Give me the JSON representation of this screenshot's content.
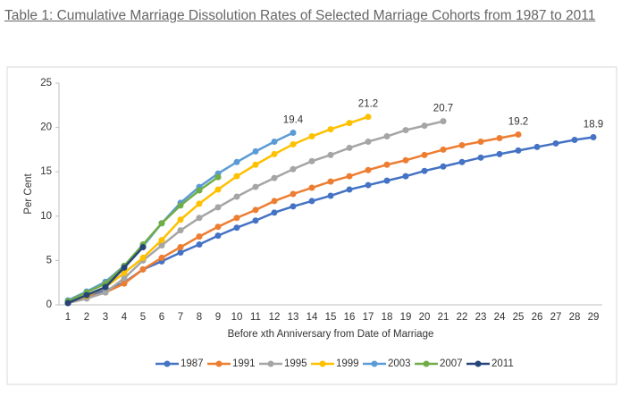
{
  "chart_data": {
    "type": "line",
    "title": "Table 1: Cumulative Marriage Dissolution Rates of Selected Marriage Cohorts from 1987 to 2011",
    "x_label": "Before xth Anniversary from Date of Marriage",
    "y_label": "Per Cent",
    "categories": [
      "1",
      "2",
      "3",
      "4",
      "5",
      "6",
      "7",
      "8",
      "9",
      "10",
      "11",
      "12",
      "13",
      "14",
      "15",
      "16",
      "17",
      "18",
      "19",
      "20",
      "21",
      "22",
      "23",
      "24",
      "25",
      "26",
      "27",
      "28",
      "29"
    ],
    "ylim": [
      0,
      25
    ],
    "yticks": [
      0,
      5,
      10,
      15,
      20,
      25
    ],
    "grid": false,
    "legend": "bottom",
    "series": [
      {
        "name": "1987",
        "color": "#4472c4",
        "end_label": true,
        "values": [
          0.2,
          1.0,
          1.6,
          2.5,
          4.0,
          4.9,
          5.9,
          6.8,
          7.8,
          8.7,
          9.5,
          10.4,
          11.1,
          11.7,
          12.3,
          13.0,
          13.5,
          14.0,
          14.5,
          15.1,
          15.6,
          16.1,
          16.6,
          17.0,
          17.4,
          17.8,
          18.2,
          18.6,
          18.9
        ]
      },
      {
        "name": "1991",
        "color": "#ed7d31",
        "end_label": true,
        "values": [
          0.2,
          0.8,
          1.4,
          2.4,
          4.0,
          5.3,
          6.5,
          7.7,
          8.8,
          9.8,
          10.7,
          11.7,
          12.5,
          13.2,
          13.9,
          14.5,
          15.2,
          15.8,
          16.3,
          16.9,
          17.5,
          18.0,
          18.4,
          18.8,
          19.2,
          null,
          null,
          null,
          null
        ]
      },
      {
        "name": "1995",
        "color": "#a5a5a5",
        "end_label": true,
        "values": [
          0.2,
          0.7,
          1.4,
          3.0,
          5.0,
          6.7,
          8.4,
          9.8,
          11.0,
          12.2,
          13.3,
          14.3,
          15.3,
          16.2,
          16.9,
          17.7,
          18.4,
          19.0,
          19.7,
          20.2,
          20.7,
          null,
          null,
          null,
          null,
          null,
          null,
          null,
          null
        ]
      },
      {
        "name": "1999",
        "color": "#ffc000",
        "end_label": true,
        "values": [
          0.3,
          1.0,
          2.0,
          3.6,
          5.3,
          7.3,
          9.6,
          11.4,
          13.0,
          14.5,
          15.8,
          17.0,
          18.1,
          19.0,
          19.8,
          20.5,
          21.2,
          null,
          null,
          null,
          null,
          null,
          null,
          null,
          null,
          null,
          null,
          null,
          null
        ]
      },
      {
        "name": "2003",
        "color": "#5b9bd5",
        "end_label": true,
        "values": [
          0.5,
          1.5,
          2.6,
          4.4,
          6.6,
          9.2,
          11.5,
          13.3,
          14.8,
          16.1,
          17.3,
          18.4,
          19.4,
          null,
          null,
          null,
          null,
          null,
          null,
          null,
          null,
          null,
          null,
          null,
          null,
          null,
          null,
          null,
          null
        ]
      },
      {
        "name": "2007",
        "color": "#70ad47",
        "end_label": false,
        "values": [
          0.4,
          1.4,
          2.4,
          4.4,
          6.8,
          9.2,
          11.2,
          12.9,
          14.4,
          null,
          null,
          null,
          null,
          null,
          null,
          null,
          null,
          null,
          null,
          null,
          null,
          null,
          null,
          null,
          null,
          null,
          null,
          null,
          null
        ]
      },
      {
        "name": "2011",
        "color": "#264478",
        "end_label": false,
        "values": [
          0.2,
          1.1,
          2.0,
          4.2,
          6.5,
          null,
          null,
          null,
          null,
          null,
          null,
          null,
          null,
          null,
          null,
          null,
          null,
          null,
          null,
          null,
          null,
          null,
          null,
          null,
          null,
          null,
          null,
          null,
          null
        ]
      }
    ]
  }
}
